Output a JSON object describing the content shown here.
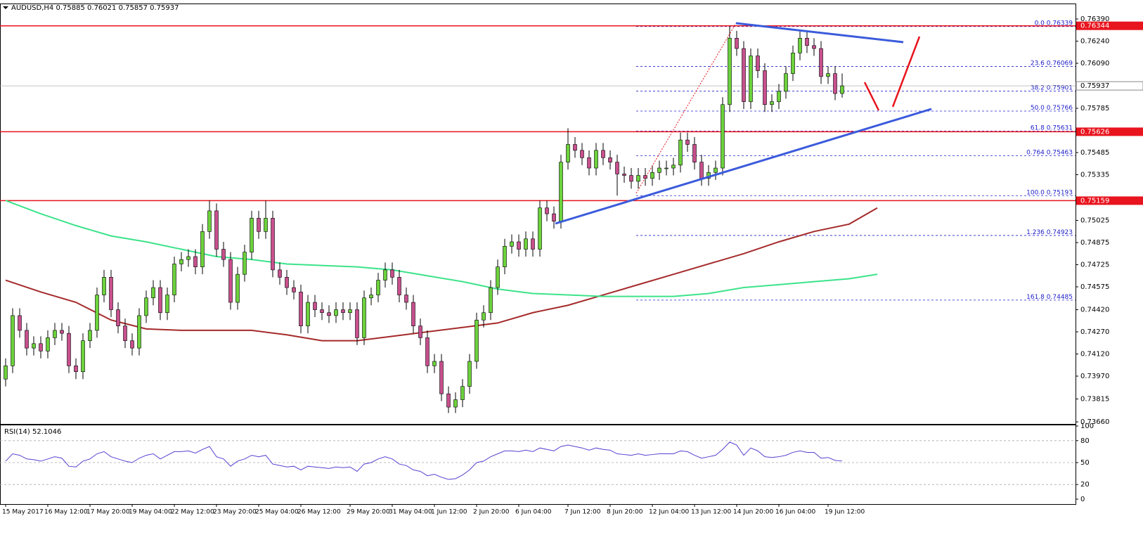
{
  "chart_data": {
    "type": "candlestick",
    "title": "AUDUSD,H4",
    "up_color": "#6cd23c",
    "down_color": "#c8508e",
    "categories": [
      "15 May 2017",
      null,
      null,
      null,
      null,
      null,
      "16 May 12:00",
      null,
      null,
      null,
      null,
      null,
      "17 May 20:00",
      null,
      null,
      null,
      null,
      null,
      "19 May 04:00",
      null,
      null,
      null,
      null,
      null,
      "22 May 12:00",
      null,
      null,
      null,
      null,
      null,
      "23 May 20:00",
      null,
      null,
      null,
      null,
      null,
      "25 May 04:00",
      null,
      null,
      null,
      null,
      null,
      "26 May 12:00",
      null,
      null,
      null,
      null,
      null,
      null,
      "29 May 20:00",
      null,
      null,
      null,
      null,
      null,
      "31 May 04:00",
      null,
      null,
      null,
      null,
      null,
      "1 Jun 12:00",
      null,
      null,
      null,
      null,
      null,
      "2 Jun 20:00",
      null,
      null,
      null,
      null,
      null,
      "6 Jun 04:00",
      null,
      null,
      null,
      null,
      null,
      null,
      "7 Jun 12:00",
      null,
      null,
      null,
      null,
      null,
      "8 Jun 20:00",
      null,
      null,
      null,
      null,
      null,
      "12 Jun 04:00",
      null,
      null,
      null,
      null,
      null,
      "13 Jun 12:00",
      null,
      null,
      null,
      null,
      null,
      "14 Jun 20:00",
      null,
      null,
      null,
      null,
      null,
      "16 Jun 04:00",
      null,
      null,
      null,
      null,
      null,
      null,
      "19 Jun 12:00",
      null,
      null
    ],
    "open": [
      0.7395,
      0.7404,
      0.7438,
      0.7428,
      0.7416,
      0.7419,
      0.7414,
      0.7423,
      0.7428,
      0.7426,
      0.7404,
      0.74,
      0.7421,
      0.7428,
      0.7452,
      0.7464,
      0.7442,
      0.7431,
      0.7421,
      0.7416,
      0.7438,
      0.745,
      0.7457,
      0.744,
      0.7452,
      0.7473,
      0.7476,
      0.7478,
      0.7471,
      0.7495,
      0.7509,
      0.7483,
      0.7476,
      0.7447,
      0.7466,
      0.7481,
      0.7504,
      0.7495,
      0.7504,
      0.7469,
      0.7464,
      0.7457,
      0.7454,
      0.7431,
      0.7447,
      0.7442,
      0.744,
      0.7438,
      0.7442,
      0.744,
      0.7442,
      0.7423,
      0.745,
      0.7452,
      0.7462,
      0.7469,
      0.7464,
      0.7452,
      0.7447,
      0.7431,
      0.7423,
      0.7404,
      0.7407,
      0.7385,
      0.7376,
      0.7381,
      0.739,
      0.7407,
      0.7435,
      0.744,
      0.7457,
      0.7471,
      0.7485,
      0.7488,
      0.7483,
      0.749,
      0.7483,
      0.7511,
      0.7507,
      0.7502,
      0.7542,
      0.7554,
      0.755,
      0.7545,
      0.7538,
      0.755,
      0.7545,
      0.7542,
      0.7534,
      0.7533,
      0.7529,
      0.7533,
      0.7531,
      0.7535,
      0.7538,
      0.7538,
      0.754,
      0.7557,
      0.7554,
      0.7542,
      0.7531,
      0.7535,
      0.7538,
      0.7581,
      0.7626,
      0.7619,
      0.7583,
      0.7614,
      0.7604,
      0.7581,
      0.7583,
      0.759,
      0.7602,
      0.7616,
      0.7626,
      0.7621,
      0.7619,
      0.76,
      0.7602,
      0.75885
    ],
    "high": [
      0.7409,
      0.7443,
      0.7443,
      0.7433,
      0.7424,
      0.7424,
      0.7428,
      0.7433,
      0.7433,
      0.7431,
      0.7409,
      0.7426,
      0.7433,
      0.7457,
      0.7469,
      0.7469,
      0.7447,
      0.7436,
      0.7426,
      0.7443,
      0.7455,
      0.7462,
      0.7462,
      0.7457,
      0.7478,
      0.7481,
      0.7483,
      0.7483,
      0.75,
      0.7516,
      0.7514,
      0.7488,
      0.7481,
      0.7471,
      0.7486,
      0.7509,
      0.7509,
      0.7516,
      0.7509,
      0.7474,
      0.7469,
      0.7462,
      0.7459,
      0.7452,
      0.7452,
      0.7447,
      0.7445,
      0.7447,
      0.7447,
      0.7447,
      0.7447,
      0.7455,
      0.7457,
      0.7467,
      0.7474,
      0.7474,
      0.7469,
      0.7457,
      0.7452,
      0.7436,
      0.7428,
      0.7412,
      0.7412,
      0.739,
      0.7386,
      0.7395,
      0.7412,
      0.744,
      0.7445,
      0.7462,
      0.7476,
      0.749,
      0.7493,
      0.7493,
      0.7495,
      0.7495,
      0.7516,
      0.7516,
      0.7512,
      0.7547,
      0.7565,
      0.7559,
      0.7555,
      0.755,
      0.7555,
      0.7555,
      0.755,
      0.7547,
      0.7539,
      0.7538,
      0.7538,
      0.7538,
      0.754,
      0.7543,
      0.7543,
      0.7545,
      0.7562,
      0.7562,
      0.7559,
      0.7547,
      0.754,
      0.7543,
      0.7586,
      0.76339,
      0.7631,
      0.7624,
      0.7619,
      0.7619,
      0.7609,
      0.7588,
      0.7595,
      0.7607,
      0.7621,
      0.7631,
      0.7631,
      0.7626,
      0.7624,
      0.7607,
      0.7607,
      0.76021
    ],
    "low": [
      0.739,
      0.7399,
      0.7423,
      0.7411,
      0.7411,
      0.7409,
      0.7409,
      0.7418,
      0.7421,
      0.7399,
      0.7395,
      0.7395,
      0.7416,
      0.7423,
      0.7447,
      0.7437,
      0.7426,
      0.7416,
      0.7411,
      0.7411,
      0.7433,
      0.7445,
      0.7435,
      0.7435,
      0.7447,
      0.7468,
      0.7471,
      0.7466,
      0.7466,
      0.749,
      0.7478,
      0.7471,
      0.7442,
      0.7442,
      0.7461,
      0.7476,
      0.749,
      0.749,
      0.7464,
      0.7459,
      0.7452,
      0.7449,
      0.7426,
      0.7426,
      0.7437,
      0.7435,
      0.7433,
      0.7433,
      0.7435,
      0.7435,
      0.7418,
      0.7418,
      0.7445,
      0.7447,
      0.7457,
      0.7459,
      0.7447,
      0.7442,
      0.7426,
      0.7418,
      0.7399,
      0.7399,
      0.738,
      0.7372,
      0.7372,
      0.7376,
      0.7385,
      0.7402,
      0.743,
      0.7435,
      0.7452,
      0.7466,
      0.748,
      0.7478,
      0.7478,
      0.7478,
      0.7478,
      0.7502,
      0.7497,
      0.7497,
      0.7537,
      0.7545,
      0.754,
      0.7533,
      0.7533,
      0.754,
      0.7537,
      0.75193,
      0.7528,
      0.7524,
      0.7524,
      0.7526,
      0.7526,
      0.753,
      0.7533,
      0.7533,
      0.7535,
      0.7549,
      0.7537,
      0.7526,
      0.7526,
      0.753,
      0.7533,
      0.7576,
      0.7614,
      0.7578,
      0.7578,
      0.7599,
      0.7576,
      0.7576,
      0.7578,
      0.7585,
      0.7597,
      0.7611,
      0.7616,
      0.7614,
      0.7595,
      0.7595,
      0.7584,
      0.75857
    ],
    "close": [
      0.7404,
      0.7438,
      0.7428,
      0.7416,
      0.7419,
      0.7414,
      0.7423,
      0.7428,
      0.7426,
      0.7404,
      0.74,
      0.7421,
      0.7428,
      0.7452,
      0.7464,
      0.7442,
      0.7431,
      0.7421,
      0.7416,
      0.7438,
      0.745,
      0.7457,
      0.744,
      0.7452,
      0.7473,
      0.7476,
      0.7478,
      0.7471,
      0.7495,
      0.7509,
      0.7483,
      0.7476,
      0.7447,
      0.7466,
      0.7481,
      0.7504,
      0.7495,
      0.7504,
      0.7469,
      0.7464,
      0.7457,
      0.7454,
      0.7431,
      0.7447,
      0.7442,
      0.744,
      0.7438,
      0.7442,
      0.744,
      0.7442,
      0.7423,
      0.745,
      0.7452,
      0.7462,
      0.7469,
      0.7464,
      0.7452,
      0.7447,
      0.7431,
      0.7423,
      0.7404,
      0.7407,
      0.7385,
      0.7376,
      0.7381,
      0.739,
      0.7407,
      0.7435,
      0.744,
      0.7457,
      0.7471,
      0.7485,
      0.7488,
      0.7483,
      0.749,
      0.7483,
      0.7511,
      0.7507,
      0.7502,
      0.7542,
      0.7554,
      0.755,
      0.7545,
      0.7538,
      0.755,
      0.7545,
      0.7542,
      0.7534,
      0.7533,
      0.7529,
      0.7533,
      0.7531,
      0.7535,
      0.7538,
      0.7538,
      0.754,
      0.7557,
      0.7554,
      0.7542,
      0.7531,
      0.7535,
      0.7538,
      0.7581,
      0.7626,
      0.7619,
      0.7583,
      0.7614,
      0.7604,
      0.7581,
      0.7583,
      0.759,
      0.7602,
      0.7616,
      0.7626,
      0.7621,
      0.7619,
      0.76,
      0.7602,
      0.75885,
      0.75937
    ],
    "ylim": [
      0.73646,
      0.76495
    ],
    "yticks": [
      {
        "value": 0.7639,
        "label": "0.76390"
      },
      {
        "value": 0.7624,
        "label": "0.76240"
      },
      {
        "value": 0.7609,
        "label": "0.76090"
      },
      0.75785,
      0.75485,
      0.75335,
      0.75025,
      0.74875,
      0.74725,
      0.74575,
      {
        "value": 0.7442,
        "label": "0.74420"
      },
      {
        "value": 0.7427,
        "label": "0.74270"
      },
      {
        "value": 0.7412,
        "label": "0.74120"
      },
      {
        "value": 0.7397,
        "label": "0.73970"
      },
      0.73815,
      {
        "value": 0.7366,
        "label": "0.73660"
      }
    ],
    "moving_averages": [
      {
        "color": "#a52a2a",
        "x": [
          0,
          5,
          10,
          15,
          20,
          25,
          30,
          35,
          40,
          45,
          50,
          55,
          60,
          65,
          70,
          75,
          80,
          85,
          90,
          95,
          100,
          105,
          110,
          115,
          120,
          124
        ],
        "values": [
          0.7462,
          0.7454,
          0.7447,
          0.7435,
          0.7429,
          0.7428,
          0.7428,
          0.7428,
          0.7425,
          0.7421,
          0.7421,
          0.7424,
          0.7427,
          0.743,
          0.7433,
          0.744,
          0.7445,
          0.7452,
          0.7459,
          0.7466,
          0.7473,
          0.748,
          0.7488,
          0.7495,
          0.75,
          0.7511
        ]
      },
      {
        "color": "#3ce38a",
        "x": [
          0,
          5,
          10,
          15,
          20,
          25,
          30,
          35,
          40,
          45,
          50,
          55,
          60,
          65,
          70,
          75,
          80,
          85,
          90,
          95,
          100,
          105,
          110,
          115,
          120,
          124
        ],
        "values": [
          0.7516,
          0.7507,
          0.7499,
          0.7492,
          0.7488,
          0.7483,
          0.7478,
          0.7476,
          0.7473,
          0.7472,
          0.7471,
          0.7469,
          0.7465,
          0.7461,
          0.7456,
          0.7453,
          0.7452,
          0.7451,
          0.7451,
          0.7451,
          0.7453,
          0.7457,
          0.7459,
          0.7461,
          0.7463,
          0.7466
        ]
      }
    ],
    "levels": [
      0.76344,
      0.75626,
      0.75159
    ],
    "level_color": "#e8141e",
    "fib_color": "#2020c8",
    "fibonacci": [
      {
        "level": "0.0",
        "price": 0.76339
      },
      {
        "level": "23.6",
        "price": 0.76069
      },
      {
        "level": "38.2",
        "price": 0.75901
      },
      {
        "level": "50.0",
        "price": 0.75766
      },
      {
        "level": "61.8",
        "price": 0.75631
      },
      {
        "level": "0.764",
        "price": 0.75463
      },
      {
        "level": "100.0",
        "price": 0.75193
      },
      {
        "level": "1.236",
        "price": 0.74923
      },
      {
        "level": "161.8",
        "price": 0.74485
      }
    ],
    "rsi": {
      "title": "RSI(14)",
      "color": "#5a3fd0",
      "ylim": [
        0,
        100
      ],
      "yticks": [
        100,
        80,
        50,
        20,
        0
      ],
      "values": [
        52,
        62,
        60,
        55,
        54,
        52,
        55,
        58,
        56,
        45,
        44,
        52,
        55,
        62,
        65,
        58,
        55,
        52,
        50,
        56,
        60,
        62,
        55,
        60,
        65,
        65,
        66,
        63,
        68,
        72,
        58,
        55,
        45,
        52,
        55,
        60,
        58,
        60,
        48,
        46,
        44,
        45,
        40,
        45,
        44,
        43,
        42,
        44,
        43,
        44,
        38,
        48,
        50,
        55,
        58,
        55,
        48,
        46,
        40,
        38,
        32,
        34,
        30,
        27,
        28,
        33,
        40,
        50,
        52,
        58,
        62,
        66,
        66,
        65,
        67,
        65,
        70,
        68,
        66,
        72,
        74,
        72,
        70,
        67,
        70,
        68,
        67,
        62,
        61,
        60,
        62,
        60,
        61,
        62,
        62,
        62,
        66,
        65,
        60,
        56,
        58,
        60,
        68,
        78,
        74,
        60,
        70,
        66,
        58,
        57,
        58,
        60,
        64,
        66,
        64,
        64,
        56,
        57,
        53,
        52.1046
      ]
    }
  }
}
